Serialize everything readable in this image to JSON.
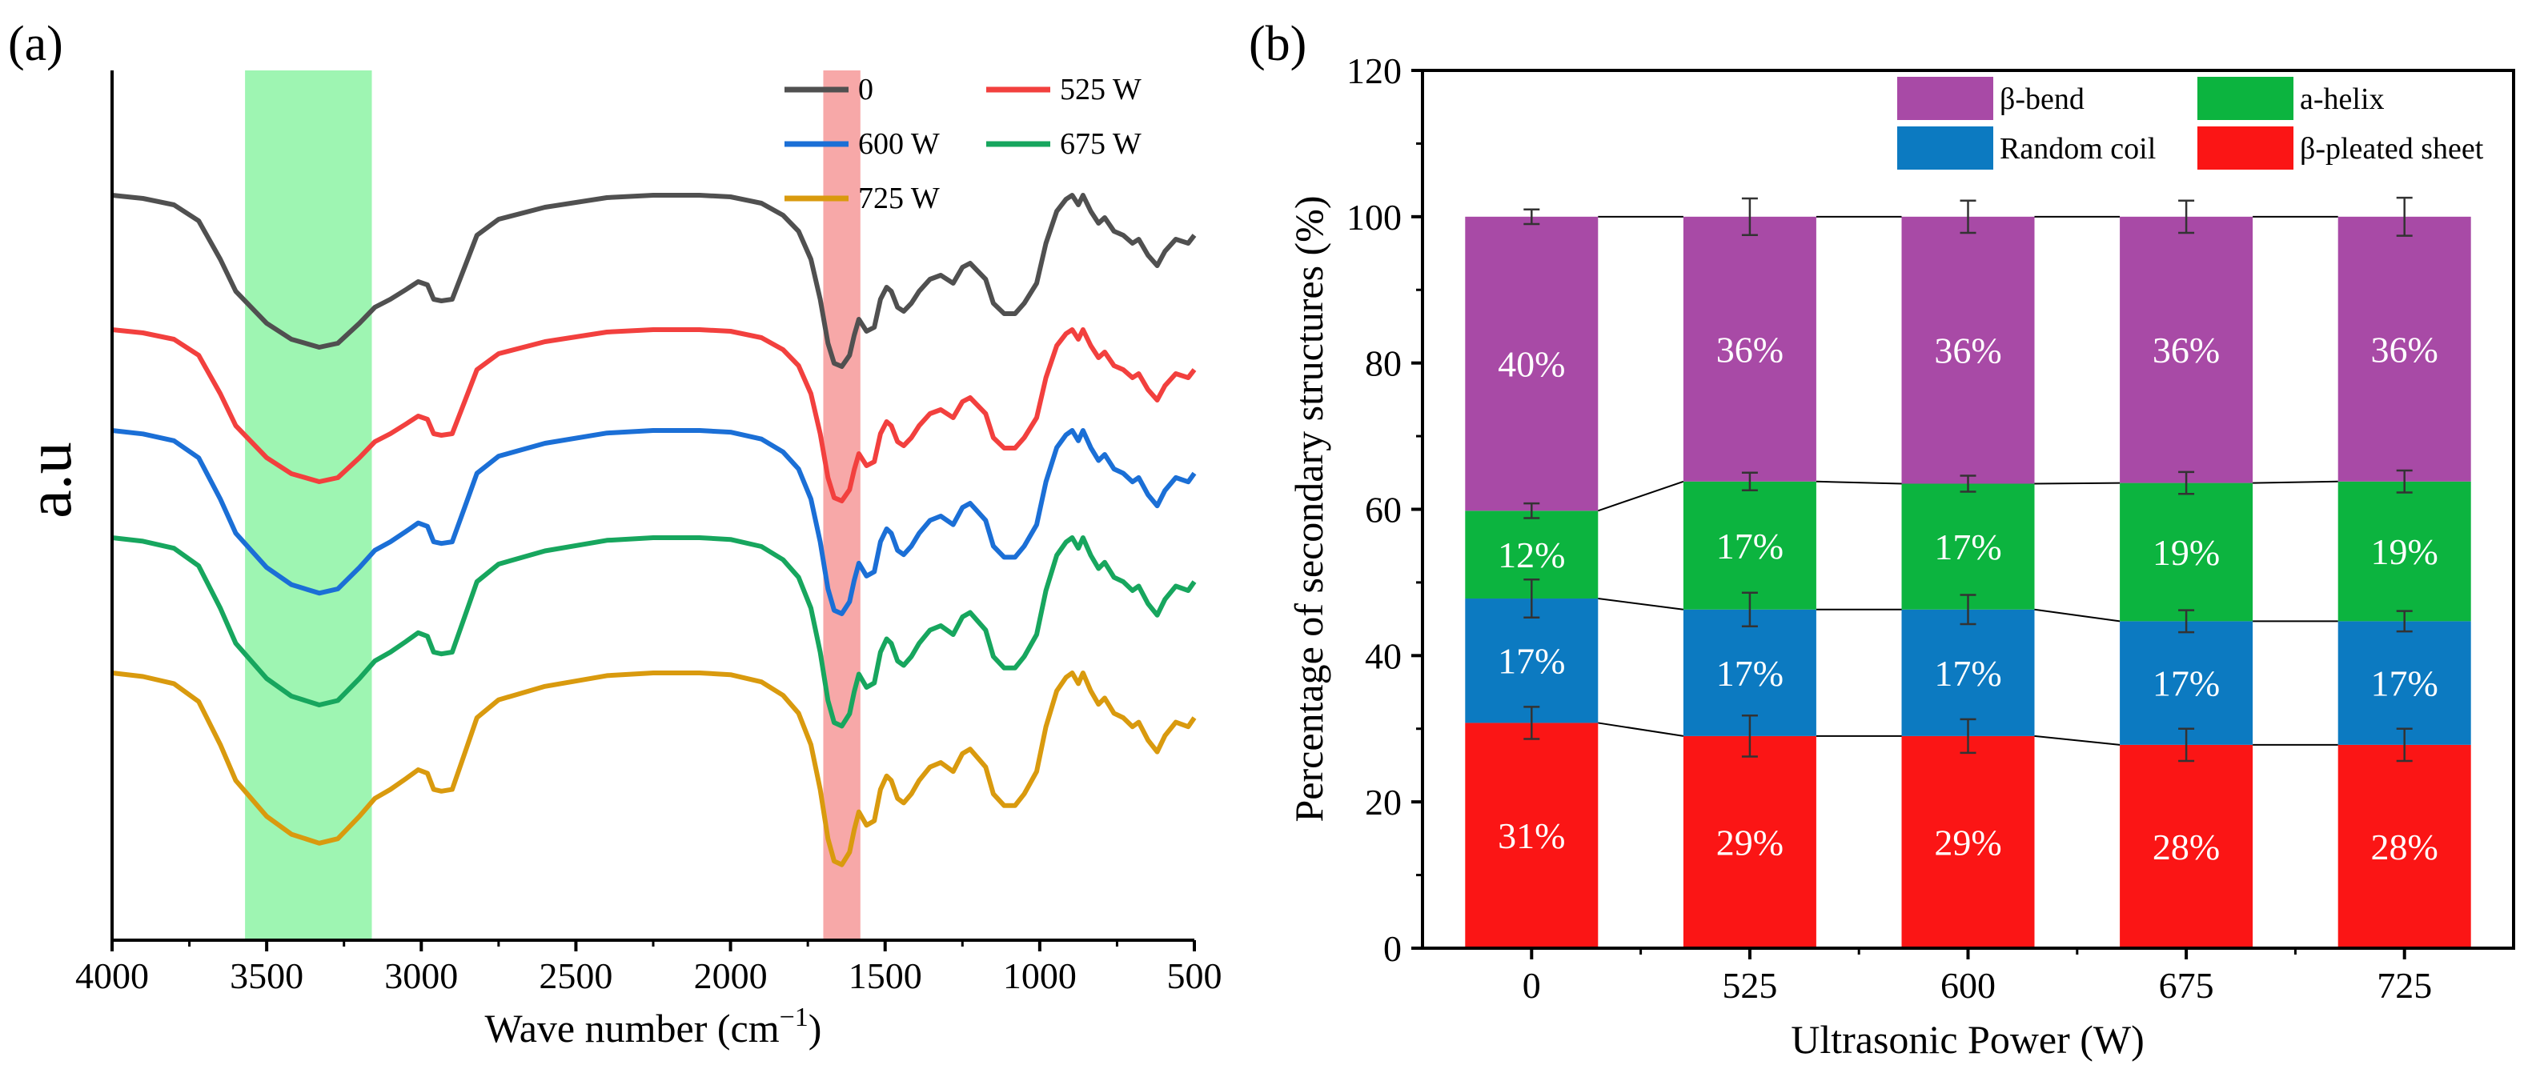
{
  "chart_data": [
    {
      "panel": "(a)",
      "type": "line",
      "xlabel_main": "Wave number (cm",
      "xlabel_sup": "−1",
      "xlabel_end": ")",
      "ylabel": "a.u",
      "xlim": [
        4000,
        500
      ],
      "xticks": [
        "4000",
        "3500",
        "3000",
        "2500",
        "2000",
        "1500",
        "1000",
        "500"
      ],
      "highlight_bands": [
        {
          "from": 3570,
          "to": 3160,
          "color": "#9ef5b2"
        },
        {
          "from": 1700,
          "to": 1580,
          "color": "#f7a8a8"
        }
      ],
      "series": [
        {
          "name": "0",
          "color": "#505050",
          "offset": 0
        },
        {
          "name": "525 W",
          "color": "#f2403e",
          "offset": 1
        },
        {
          "name": "600 W",
          "color": "#1b6fd6",
          "offset": 2
        },
        {
          "name": "675 W",
          "color": "#17a65e",
          "offset": 3
        },
        {
          "name": "725 W",
          "color": "#d99a0e",
          "offset": 4
        }
      ]
    },
    {
      "panel": "(b)",
      "type": "bar",
      "stacked": true,
      "xlabel": "Ultrasonic Power (W)",
      "ylabel": "Percentage of secondary structures (%)",
      "ylim": [
        0,
        120
      ],
      "yticks": [
        "0",
        "20",
        "40",
        "60",
        "80",
        "100",
        "120"
      ],
      "categories": [
        "0",
        "525",
        "600",
        "675",
        "725"
      ],
      "series": [
        {
          "name": "β-pleated sheet",
          "color": "#fb1515",
          "values": [
            31,
            29,
            29,
            28,
            28
          ],
          "labels": [
            "31%",
            "29%",
            "29%",
            "28%",
            "28%"
          ],
          "errors": [
            2.2,
            2.8,
            2.3,
            2.2,
            2.2
          ]
        },
        {
          "name": "Random coil",
          "color": "#0c7ac1",
          "values": [
            17,
            17,
            17,
            17,
            17
          ],
          "labels": [
            "17%",
            "17%",
            "17%",
            "17%",
            "17%"
          ],
          "errors": [
            2.6,
            2.3,
            2.0,
            1.5,
            1.4
          ]
        },
        {
          "name": "a-helix",
          "color": "#0cb43f",
          "values": [
            12,
            17,
            17,
            19,
            19
          ],
          "labels": [
            "12%",
            "17%",
            "17%",
            "19%",
            "19%"
          ],
          "errors": [
            1.0,
            1.2,
            1.1,
            1.5,
            1.5
          ]
        },
        {
          "name": "β-bend",
          "color": "#a84aa6",
          "values": [
            40,
            36,
            36,
            36,
            36
          ],
          "labels": [
            "40%",
            "36%",
            "36%",
            "36%",
            "36%"
          ],
          "errors": [
            1.0,
            2.5,
            2.2,
            2.2,
            2.6
          ]
        }
      ],
      "boundaries": [
        [
          30.8,
          29.0,
          29.0,
          27.8,
          27.8
        ],
        [
          47.8,
          46.3,
          46.3,
          44.7,
          44.7
        ],
        [
          59.8,
          63.8,
          63.5,
          63.6,
          63.8
        ],
        [
          100,
          100,
          100,
          100,
          100
        ]
      ]
    }
  ]
}
